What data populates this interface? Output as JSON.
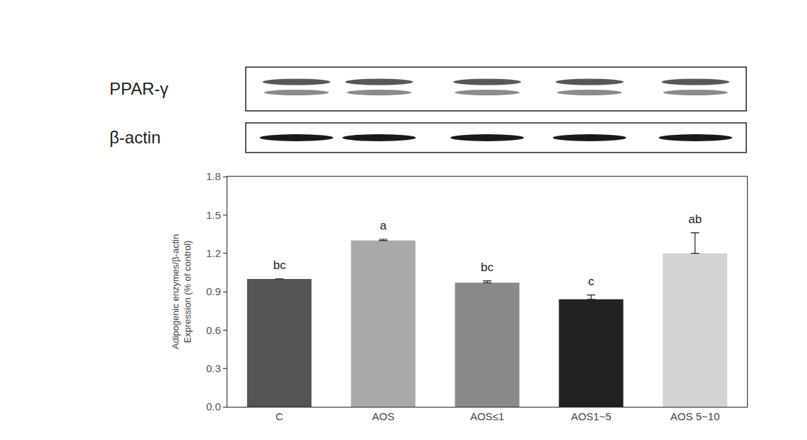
{
  "chart_data": {
    "type": "bar",
    "blot_labels": [
      "PPAR-γ",
      "β-actin"
    ],
    "y_label": [
      "Adipogenic enzymes/β-actin",
      "Expression (% of control)"
    ],
    "categories": [
      "C",
      "AOS",
      "AOS≤1",
      "AOS1~5",
      "AOS 5~10"
    ],
    "values": [
      1.0,
      1.3,
      0.97,
      0.84,
      1.2
    ],
    "errors": [
      0,
      0.01,
      0.015,
      0.035,
      0.16
    ],
    "annotations": [
      "bc",
      "a",
      "bc",
      "c",
      "ab"
    ],
    "colors": [
      "#555555",
      "#a9a9a9",
      "#8a8a8a",
      "#222222",
      "#d4d4d4"
    ],
    "ylim": [
      0,
      1.8
    ],
    "yticks": [
      {
        "value": 0,
        "label": "0.0"
      },
      0.3,
      0.6,
      0.9,
      1.2,
      1.5,
      1.8
    ],
    "grid": false
  }
}
